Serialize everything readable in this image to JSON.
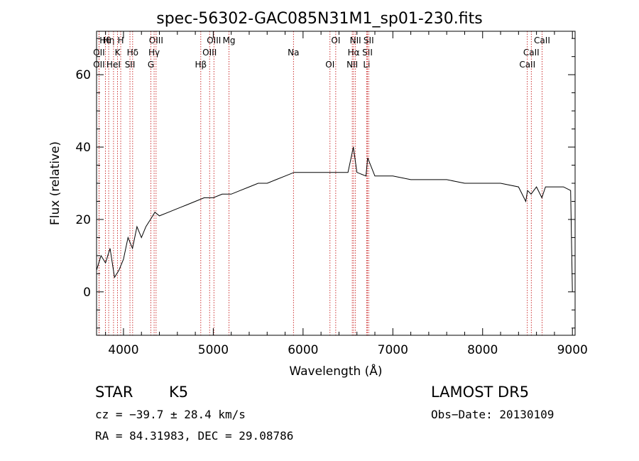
{
  "chart_data": {
    "type": "line",
    "title": "spec-56302-GAC085N31M1_sp01-230.fits",
    "xlabel": "Wavelength (Å)",
    "ylabel": "Flux (relative)",
    "xlim": [
      3700,
      9030
    ],
    "ylim": [
      -12,
      72
    ],
    "xticks": [
      4000,
      5000,
      6000,
      7000,
      8000,
      9000
    ],
    "yticks": [
      0,
      20,
      40,
      60
    ],
    "grid": false,
    "series": [
      {
        "color": "#000000",
        "x": [
          3700,
          3750,
          3800,
          3850,
          3900,
          3950,
          4000,
          4050,
          4100,
          4150,
          4200,
          4250,
          4300,
          4350,
          4400,
          4500,
          4600,
          4700,
          4800,
          4900,
          5000,
          5100,
          5200,
          5300,
          5400,
          5500,
          5600,
          5700,
          5800,
          5900,
          6000,
          6100,
          6200,
          6300,
          6400,
          6500,
          6560,
          6600,
          6700,
          6720,
          6800,
          6900,
          7000,
          7200,
          7400,
          7600,
          7800,
          8000,
          8200,
          8400,
          8480,
          8500,
          8540,
          8600,
          8660,
          8700,
          8800,
          8900,
          8980,
          9000
        ],
        "y": [
          6,
          10,
          8,
          12,
          4,
          6,
          9,
          15,
          12,
          18,
          15,
          18,
          20,
          22,
          21,
          22,
          23,
          24,
          25,
          26,
          26,
          27,
          27,
          28,
          29,
          30,
          30,
          31,
          32,
          33,
          33,
          33,
          33,
          33,
          33,
          33,
          40,
          33,
          32,
          37,
          32,
          32,
          32,
          31,
          31,
          31,
          30,
          30,
          30,
          29,
          25,
          28,
          27,
          29,
          26,
          29,
          29,
          29,
          28,
          0
        ]
      }
    ],
    "lines": [
      {
        "label": "Hθ",
        "wl": 3798
      },
      {
        "label": "OII",
        "wl": 3727
      },
      {
        "label": "OII",
        "wl": 3727
      },
      {
        "label": "Hη",
        "wl": 3835
      },
      {
        "label": "K",
        "wl": 3934
      },
      {
        "label": "HeI",
        "wl": 3889
      },
      {
        "label": "H",
        "wl": 3969
      },
      {
        "label": "Hδ",
        "wl": 4102
      },
      {
        "label": "SII",
        "wl": 4072
      },
      {
        "label": "OIII",
        "wl": 4363
      },
      {
        "label": "Hγ",
        "wl": 4341
      },
      {
        "label": "G",
        "wl": 4305
      },
      {
        "label": "OIII",
        "wl": 5007
      },
      {
        "label": "OIII",
        "wl": 4959
      },
      {
        "label": "Hβ",
        "wl": 4861
      },
      {
        "label": "Mg",
        "wl": 5175
      },
      {
        "label": "Na",
        "wl": 5893
      },
      {
        "label": "OI",
        "wl": 6300
      },
      {
        "label": "OI",
        "wl": 6364
      },
      {
        "label": "Hα",
        "wl": 6563
      },
      {
        "label": "NII",
        "wl": 6548
      },
      {
        "label": "NII",
        "wl": 6584
      },
      {
        "label": "SII",
        "wl": 6717
      },
      {
        "label": "Li",
        "wl": 6708
      },
      {
        "label": "SII",
        "wl": 6731
      },
      {
        "label": "CaII",
        "wl": 8542
      },
      {
        "label": "CaII",
        "wl": 8498
      },
      {
        "label": "CaII",
        "wl": 8662
      }
    ]
  },
  "info": {
    "class_label": "STAR",
    "subclass": "K5",
    "survey": "LAMOST DR5",
    "cz_text": "cz = −39.7 ± 28.4 km/s",
    "obs_date": "Obs−Date: 20130109",
    "radec": "RA =  84.31983, DEC =  29.08786"
  }
}
